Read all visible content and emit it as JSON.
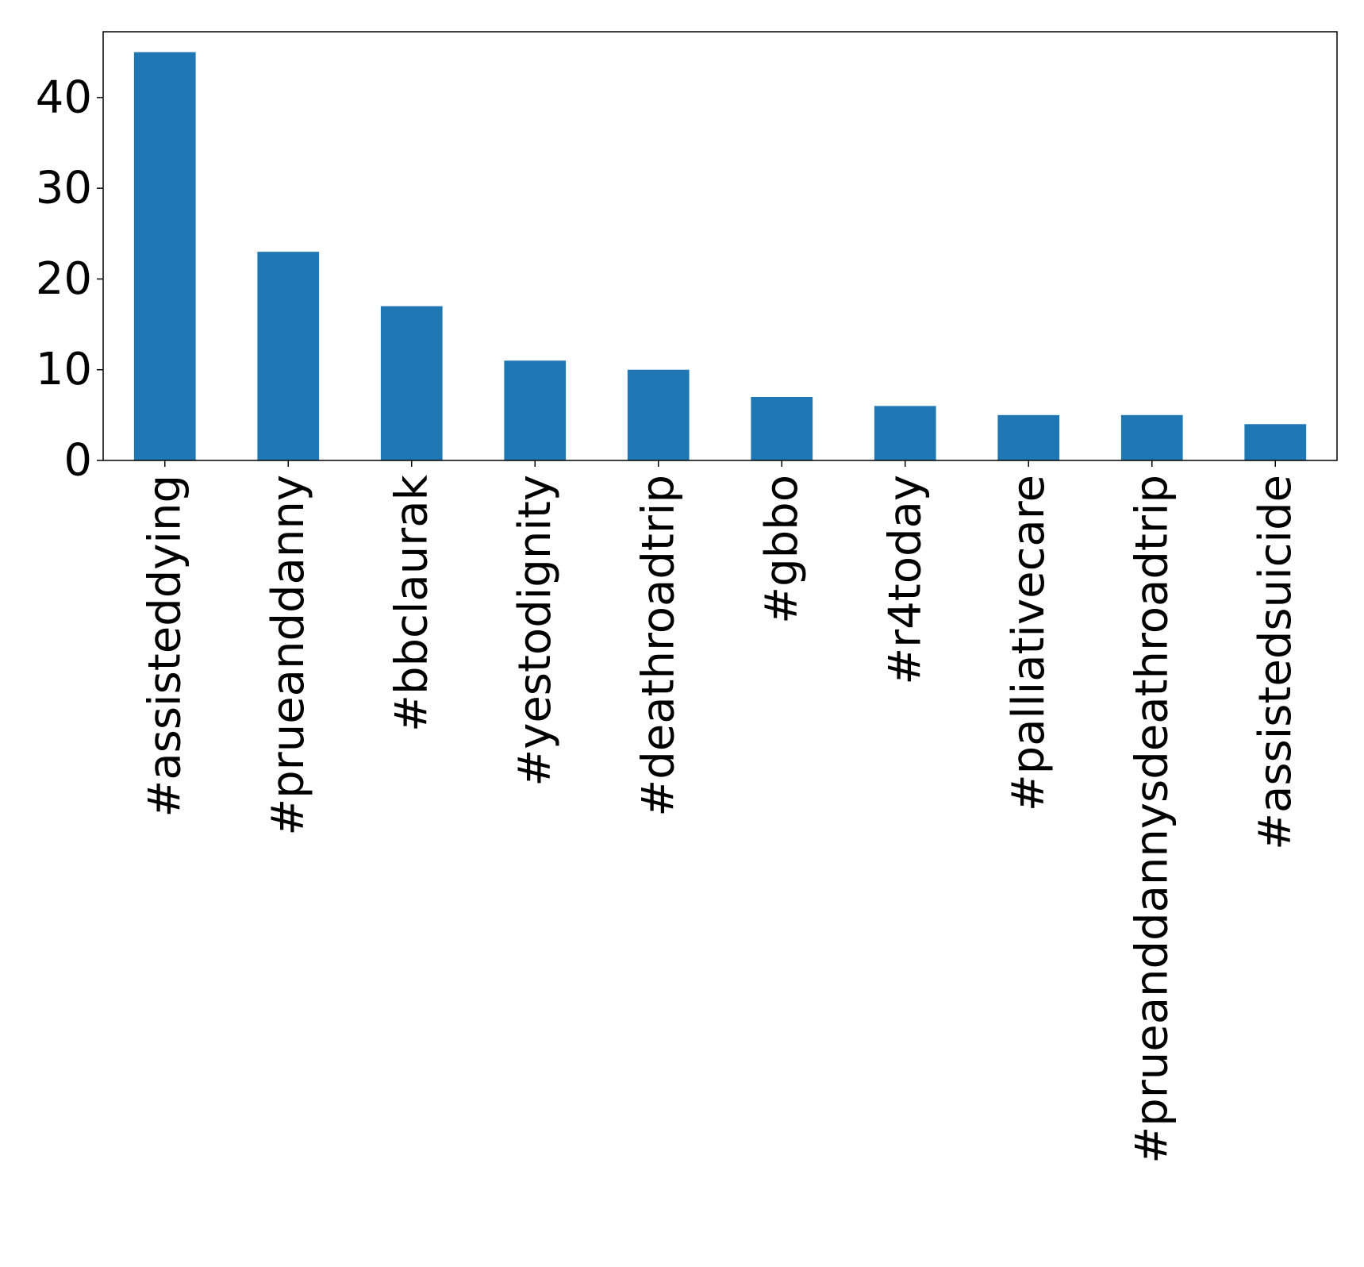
{
  "chart_data": {
    "type": "bar",
    "title": "",
    "xlabel": "",
    "ylabel": "",
    "categories": [
      "#assisteddying",
      "#prueanddanny",
      "#bbclaurak",
      "#yestodignity",
      "#deathroadtrip",
      "#gbbo",
      "#r4today",
      "#palliativecare",
      "#prueanddannysdeathroadtrip",
      "#assistedsuicide"
    ],
    "values": [
      45,
      23,
      17,
      11,
      10,
      7,
      6,
      5,
      5,
      4
    ],
    "ylim": [
      0,
      47.25
    ],
    "yticks": [
      0,
      10,
      20,
      30,
      40
    ],
    "grid": false,
    "legend": "none",
    "colors": {
      "bar": "#1f77b4",
      "axis": "#000000"
    }
  }
}
